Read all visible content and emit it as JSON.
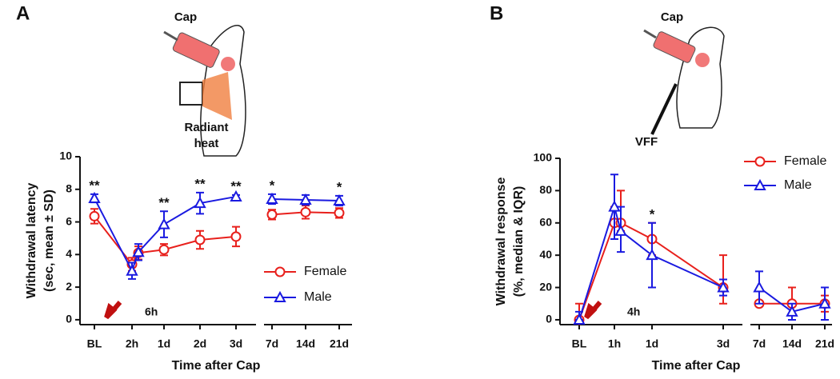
{
  "chart_data": [
    {
      "type": "line",
      "label": "A",
      "illustration_text": [
        "Cap",
        "Radiant",
        "heat"
      ],
      "xlabel": "Time after Cap",
      "ylabel": [
        "Withdrawal latency",
        "(sec, mean ± SD)"
      ],
      "categories": [
        "BL",
        "2h",
        "6h",
        "1d",
        "2d",
        "3d",
        "7d",
        "14d",
        "21d"
      ],
      "ylim": [
        -0.3,
        10
      ],
      "yticks": [
        0,
        2,
        4,
        6,
        8,
        10
      ],
      "series": [
        {
          "name": "Female",
          "color": "#e8201c",
          "marker": "circle",
          "values": [
            6.35,
            3.4,
            4.1,
            4.3,
            4.9,
            5.1,
            6.45,
            6.6,
            6.55
          ],
          "sd": [
            0.45,
            0.4,
            0.4,
            0.35,
            0.55,
            0.6,
            0.3,
            0.4,
            0.3
          ]
        },
        {
          "name": "Male",
          "color": "#1a1ae0",
          "marker": "triangle",
          "values": [
            7.45,
            3.0,
            4.15,
            5.85,
            7.15,
            7.55,
            7.4,
            7.35,
            7.3
          ],
          "sd": [
            0.25,
            0.5,
            0.5,
            0.8,
            0.65,
            0.1,
            0.3,
            0.3,
            0.3
          ]
        }
      ],
      "annotations": [
        {
          "text": "**",
          "at": 0
        },
        {
          "text": "**",
          "at": 3
        },
        {
          "text": "**",
          "at": 4
        },
        {
          "text": "**",
          "at": 5
        },
        {
          "text": "*",
          "at": 6
        },
        {
          "text": "*",
          "at": 8
        }
      ]
    },
    {
      "type": "line",
      "label": "B",
      "illustration_text": [
        "Cap",
        "VFF"
      ],
      "xlabel": "Time after Cap",
      "ylabel": [
        "Withdrawal response",
        "(%, median & IQR)"
      ],
      "categories": [
        "BL",
        "1h",
        "4h",
        "1d",
        "3d",
        "7d",
        "14d",
        "21d"
      ],
      "ylim": [
        -3,
        100
      ],
      "yticks": [
        0,
        20,
        40,
        60,
        80,
        100
      ],
      "series": [
        {
          "name": "Female",
          "color": "#e8201c",
          "marker": "circle",
          "values": [
            0,
            60,
            60,
            50,
            20,
            10,
            10,
            10
          ],
          "low": [
            0,
            50,
            55,
            40,
            10,
            10,
            0,
            5
          ],
          "high": [
            10,
            70,
            80,
            60,
            40,
            10,
            20,
            15
          ]
        },
        {
          "name": "Male",
          "color": "#1a1ae0",
          "marker": "triangle",
          "values": [
            0,
            70,
            55,
            40,
            20,
            20,
            5,
            10
          ],
          "low": [
            0,
            50,
            42,
            20,
            15,
            10,
            0,
            0
          ],
          "high": [
            5,
            90,
            70,
            60,
            25,
            30,
            10,
            20
          ]
        }
      ],
      "annotations": [
        {
          "text": "*",
          "at": 3
        }
      ]
    }
  ]
}
